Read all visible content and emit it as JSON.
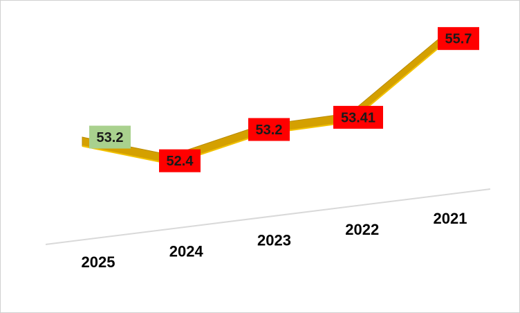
{
  "chart_data": {
    "type": "line",
    "style": "3d-ribbon",
    "categories": [
      "2025",
      "2024",
      "2023",
      "2022",
      "2021"
    ],
    "values": [
      53.2,
      52.4,
      53.2,
      53.41,
      55.7
    ],
    "data_labels": [
      "53.2",
      "52.4",
      "53.2",
      "53.41",
      "55.7"
    ],
    "ylim": [
      50.5,
      56.5
    ],
    "title": "",
    "xlabel": "",
    "ylabel": "",
    "grid": false,
    "legend": "none",
    "colors": {
      "ribbon_top": "#D4A000",
      "ribbon_side": "#B88A00",
      "ribbon_edge": "#F2C200",
      "label_default": "#FF0000",
      "label_first": "#A9D18E",
      "axis_line": "#D9D9D9"
    }
  }
}
